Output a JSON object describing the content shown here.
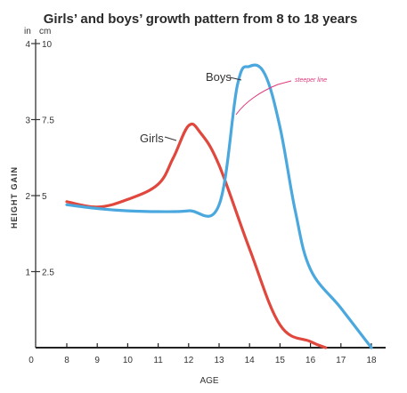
{
  "chart_data": {
    "type": "line",
    "title": "Girls’ and boys’ growth pattern from 8 to 18 years",
    "xlabel": "AGE",
    "ylabel": "HEIGHT GAIN",
    "y_units": [
      "in",
      "cm"
    ],
    "xlim": [
      7.2,
      18.2
    ],
    "ylim": [
      0,
      4
    ],
    "x_ticks": [
      8,
      9,
      10,
      11,
      12,
      13,
      14,
      15,
      16,
      17,
      18
    ],
    "x_origin_label": "0",
    "y_ticks_in": [
      "1",
      "2",
      "3",
      "4"
    ],
    "y_ticks_cm": [
      "2.5",
      "5",
      "7.5",
      "10"
    ],
    "y_tick_values": [
      1,
      2,
      3,
      4
    ],
    "grid": false,
    "legend": "none",
    "series": [
      {
        "name": "Girls",
        "color": "#e0473d",
        "points": [
          [
            8,
            1.92
          ],
          [
            9,
            1.85
          ],
          [
            10,
            1.95
          ],
          [
            11,
            2.15
          ],
          [
            11.5,
            2.5
          ],
          [
            12,
            2.92
          ],
          [
            12.4,
            2.82
          ],
          [
            13,
            2.4
          ],
          [
            14,
            1.3
          ],
          [
            15,
            0.3
          ],
          [
            16,
            0.08
          ],
          [
            16.5,
            0
          ]
        ]
      },
      {
        "name": "Boys",
        "color": "#4aa8de",
        "points": [
          [
            8,
            1.88
          ],
          [
            9,
            1.83
          ],
          [
            10,
            1.8
          ],
          [
            11,
            1.79
          ],
          [
            12,
            1.8
          ],
          [
            13,
            1.88
          ],
          [
            13.6,
            3.45
          ],
          [
            14,
            3.7
          ],
          [
            14.5,
            3.6
          ],
          [
            15,
            2.9
          ],
          [
            15.5,
            1.8
          ],
          [
            16,
            1.03
          ],
          [
            17,
            0.52
          ],
          [
            18,
            0
          ]
        ]
      }
    ],
    "annotations": [
      {
        "text": "Girls",
        "series": "Girls"
      },
      {
        "text": "Boys",
        "series": "Boys"
      },
      {
        "text": "steeper line",
        "color": "#e0387a",
        "handwritten": true
      }
    ]
  }
}
